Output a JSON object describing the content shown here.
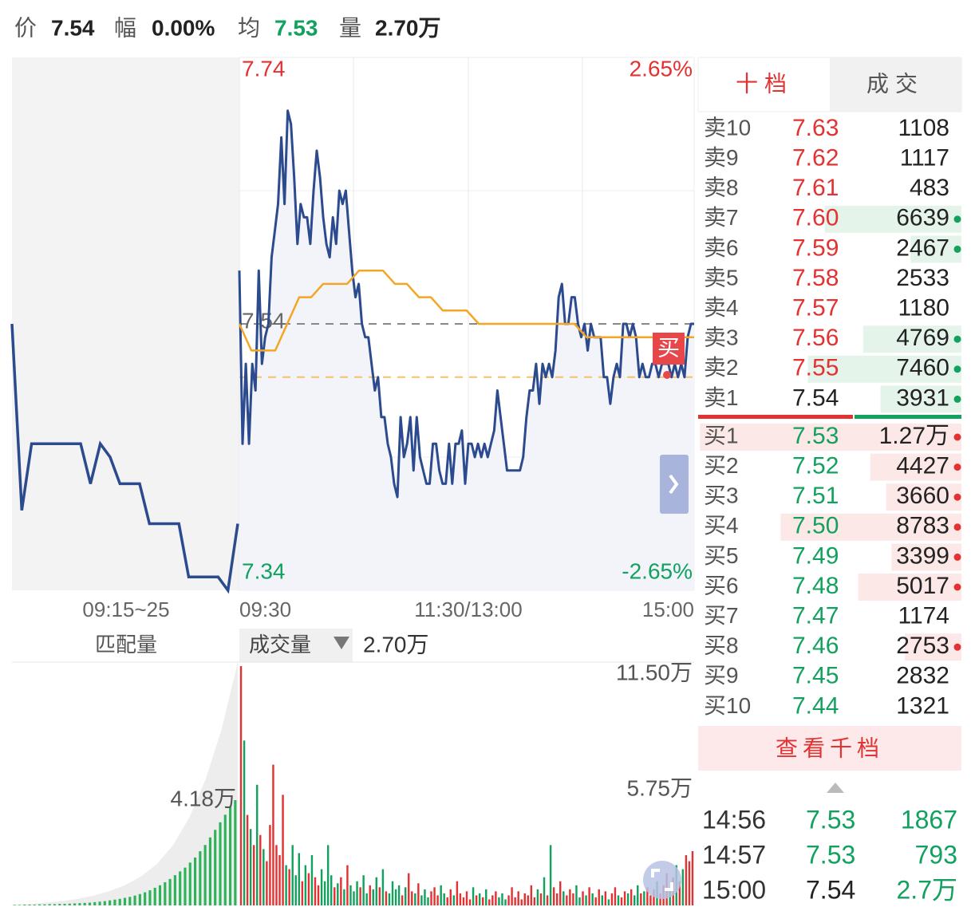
{
  "header": [
    {
      "label": "价",
      "value": "7.54"
    },
    {
      "label": "幅",
      "value": "0.00%"
    },
    {
      "label": "均",
      "value": "7.53"
    },
    {
      "label": "量",
      "value": "2.70万"
    }
  ],
  "chart_data": [
    {
      "type": "line",
      "ylim": [
        7.34,
        7.74
      ],
      "yticks": [
        7.74,
        7.54,
        7.34
      ],
      "y2lim": [
        -2.65,
        2.65
      ],
      "y2ticks": [
        {
          "value": 2.65,
          "label": "2.65%"
        },
        {
          "value": -2.65,
          "label": "-2.65%"
        }
      ],
      "time_labels": [
        "09:15~25",
        "09:30",
        "11:30/13:00",
        "15:00"
      ],
      "up_color": "#e23232",
      "down_color": "#12a15e",
      "badge": "买",
      "hline": {
        "value": 7.5,
        "color": "#f4c16a"
      },
      "series": [
        {
          "color": "#2c4a8e",
          "values": [
            7.58,
            7.45,
            7.51,
            7.45,
            7.51,
            7.49,
            7.58,
            7.51,
            7.53,
            7.54,
            7.59,
            7.61,
            7.63,
            7.68,
            7.63,
            7.7,
            7.69,
            7.65,
            7.6,
            7.63,
            7.62,
            7.62,
            7.6,
            7.64,
            7.67,
            7.65,
            7.62,
            7.6,
            7.59,
            7.62,
            7.6,
            7.64,
            7.63,
            7.64,
            7.61,
            7.58,
            7.56,
            7.57,
            7.54,
            7.53,
            7.53,
            7.51,
            7.49,
            7.5,
            7.47,
            7.47,
            7.45,
            7.44,
            7.42,
            7.41,
            7.47,
            7.44,
            7.45,
            7.47,
            7.43,
            7.47,
            7.44,
            7.43,
            7.42,
            7.42,
            7.45,
            7.45,
            7.43,
            7.42,
            7.42,
            7.45,
            7.42,
            7.45,
            7.45,
            7.46,
            7.42,
            7.45,
            7.45,
            7.44,
            7.45,
            7.44,
            7.45,
            7.44,
            7.45,
            7.46,
            7.49,
            7.47,
            7.45,
            7.43,
            7.43,
            7.43,
            7.43,
            7.43,
            7.44,
            7.47,
            7.49,
            7.49,
            7.51,
            7.48,
            7.51,
            7.5,
            7.51,
            7.5,
            7.52,
            7.56,
            7.57,
            7.54,
            7.54,
            7.56,
            7.56,
            7.54,
            7.53,
            7.54,
            7.52,
            7.54,
            7.53,
            7.53,
            7.53,
            7.5,
            7.5,
            7.48,
            7.5,
            7.51,
            7.5,
            7.54,
            7.54,
            7.53,
            7.54,
            7.53,
            7.5,
            7.51,
            7.5,
            7.5,
            7.51,
            7.51,
            7.5,
            7.51,
            7.51,
            7.51,
            7.5,
            7.51,
            7.5,
            7.51,
            7.5,
            7.53,
            7.54,
            7.54
          ]
        },
        {
          "color": "#f5a524",
          "values": [
            7.54,
            7.52,
            7.52,
            7.52,
            7.54,
            7.56,
            7.56,
            7.57,
            7.57,
            7.57,
            7.58,
            7.58,
            7.58,
            7.57,
            7.57,
            7.56,
            7.56,
            7.55,
            7.55,
            7.55,
            7.54,
            7.54,
            7.54,
            7.54,
            7.54,
            7.54,
            7.54,
            7.54,
            7.54,
            7.53,
            7.53,
            7.53,
            7.53,
            7.53,
            7.53,
            7.53,
            7.53,
            7.53,
            7.53
          ]
        }
      ],
      "auction": {
        "color": "#2c4a8e",
        "values": [
          7.54,
          7.4,
          7.45,
          7.45,
          7.45,
          7.45,
          7.45,
          7.45,
          7.42,
          7.45,
          7.44,
          7.42,
          7.42,
          7.42,
          7.39,
          7.39,
          7.39,
          7.39,
          7.35,
          7.35,
          7.35,
          7.35,
          7.34,
          7.39
        ]
      }
    },
    {
      "type": "bar",
      "tabs": [
        "匹配量",
        "成交量"
      ],
      "current": "2.70万",
      "ylim": [
        0,
        121000
      ],
      "yticks": [
        {
          "value": 115000,
          "label": "11.50万"
        },
        {
          "value": 57500,
          "label": "5.75万"
        }
      ],
      "values": [
        119000,
        82000,
        45000,
        38000,
        30000,
        60000,
        35000,
        28000,
        22000,
        40000,
        70000,
        30000,
        25000,
        55000,
        20000,
        18000,
        30000,
        15000,
        26000,
        12000,
        20000,
        16000,
        25000,
        14000,
        10000,
        18000,
        12000,
        30000,
        15000,
        9000,
        11000,
        14000,
        8000,
        20000,
        10000,
        7000,
        12000,
        9000,
        15000,
        6000,
        10000,
        8000,
        14000,
        9000,
        18000,
        7000,
        6000,
        12000,
        8000,
        10000,
        5000,
        9000,
        16000,
        7000,
        6000,
        11000,
        5000,
        8000,
        4000,
        7000,
        9000,
        5000,
        10000,
        6000,
        4000,
        8000,
        5000,
        12000,
        6000,
        4000,
        7000,
        3000,
        9000,
        5000,
        6000,
        4000,
        8000,
        3000,
        5000,
        7000,
        4000,
        6000,
        3000,
        5000,
        9000,
        4000,
        7000,
        3000,
        6000,
        5000,
        10000,
        4000,
        8000,
        6000,
        14000,
        5000,
        30000,
        9000,
        6000,
        12000,
        7000,
        5000,
        8000,
        6000,
        10000,
        4000,
        7000,
        5000,
        9000,
        6000,
        4000,
        8000,
        5000,
        7000,
        3000,
        6000,
        9000,
        5000,
        4000,
        7000,
        6000,
        8000,
        5000,
        10000,
        6000,
        7000,
        9000,
        5000,
        8000,
        12000,
        6000,
        10000,
        16000,
        9000,
        14000,
        20000,
        12000,
        18000,
        25000,
        22000,
        27000
      ],
      "auction": {
        "color": "#2fb35a",
        "ylim": [
          0,
          96600
        ],
        "yticks": [
          {
            "value": 41800,
            "label": "4.18万"
          }
        ],
        "area": [
          300,
          600,
          1000,
          1600,
          2500,
          3800,
          5600,
          8000,
          11500,
          16500,
          24000,
          35000,
          50000,
          70000,
          96600
        ],
        "values": [
          200,
          200,
          300,
          300,
          300,
          400,
          400,
          500,
          500,
          600,
          600,
          700,
          800,
          900,
          1000,
          1100,
          1300,
          1500,
          1700,
          2000,
          2300,
          2600,
          3000,
          3400,
          3900,
          4500,
          5200,
          6000,
          7000,
          8000,
          9200,
          10500,
          12000,
          13500,
          15000,
          17000,
          19000,
          21500,
          24000,
          27000,
          30000,
          33000,
          36000,
          39000,
          41800
        ]
      }
    }
  ],
  "order_book": {
    "tabs": [
      "十档",
      "成交"
    ],
    "asks": [
      {
        "label": "卖10",
        "price": "7.63",
        "volume": 1108,
        "dot": false
      },
      {
        "label": "卖9",
        "price": "7.62",
        "volume": 1117,
        "dot": false
      },
      {
        "label": "卖8",
        "price": "7.61",
        "volume": 483,
        "dot": false
      },
      {
        "label": "卖7",
        "price": "7.60",
        "volume": 6639,
        "dot": true
      },
      {
        "label": "卖6",
        "price": "7.59",
        "volume": 2467,
        "dot": true
      },
      {
        "label": "卖5",
        "price": "7.58",
        "volume": 2533,
        "dot": false
      },
      {
        "label": "卖4",
        "price": "7.57",
        "volume": 1180,
        "dot": false
      },
      {
        "label": "卖3",
        "price": "7.56",
        "volume": 4769,
        "dot": true
      },
      {
        "label": "卖2",
        "price": "7.55",
        "volume": 7460,
        "dot": true
      },
      {
        "label": "卖1",
        "price": "7.54",
        "volume": 3931,
        "dot": true
      }
    ],
    "bids": [
      {
        "label": "买1",
        "price": "7.53",
        "volume": {
          "value": 12700,
          "label": "1.27万"
        },
        "dot": true
      },
      {
        "label": "买2",
        "price": "7.52",
        "volume": 4427,
        "dot": true
      },
      {
        "label": "买3",
        "price": "7.51",
        "volume": 3660,
        "dot": true
      },
      {
        "label": "买4",
        "price": "7.50",
        "volume": 8783,
        "dot": true
      },
      {
        "label": "买5",
        "price": "7.49",
        "volume": 3399,
        "dot": true
      },
      {
        "label": "买6",
        "price": "7.48",
        "volume": 5017,
        "dot": true
      },
      {
        "label": "买7",
        "price": "7.47",
        "volume": 1174,
        "dot": false
      },
      {
        "label": "买8",
        "price": "7.46",
        "volume": 2753,
        "dot": true
      },
      {
        "label": "买9",
        "price": "7.45",
        "volume": 2832,
        "dot": false
      },
      {
        "label": "买10",
        "price": "7.44",
        "volume": 1321,
        "dot": false
      }
    ],
    "more": "查看千档",
    "trades": [
      {
        "time": "14:56",
        "price": "7.53",
        "volume": 1867
      },
      {
        "time": "14:57",
        "price": "7.53",
        "volume": 793
      },
      {
        "time": "15:00",
        "price": "7.54",
        "volume": {
          "value": 27000,
          "label": "2.7万"
        }
      }
    ]
  }
}
